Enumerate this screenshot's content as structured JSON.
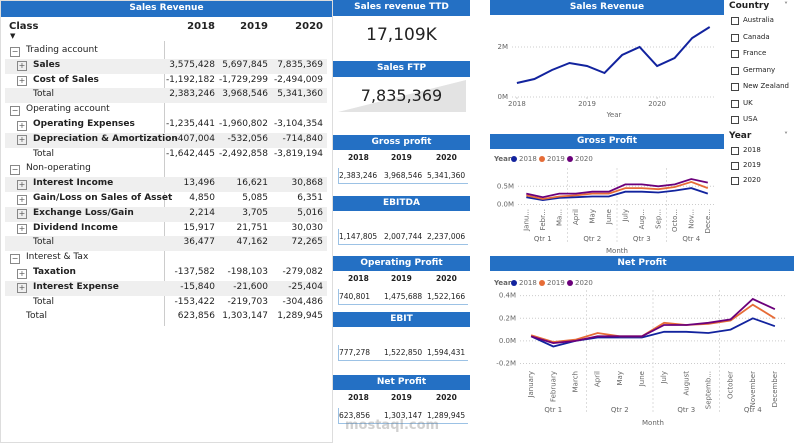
{
  "table": {
    "title": "Sales Revenue",
    "columns": [
      "Class",
      "2018",
      "2019",
      "2020"
    ],
    "groups": [
      {
        "name": "Trading account",
        "rows": [
          {
            "label": "Sales",
            "values": [
              "3,575,428",
              "5,697,845",
              "7,835,369"
            ]
          },
          {
            "label": "Cost of Sales",
            "values": [
              "-1,192,182",
              "-1,729,299",
              "-2,494,009"
            ]
          }
        ],
        "total": {
          "label": "Total",
          "values": [
            "2,383,246",
            "3,968,546",
            "5,341,360"
          ]
        }
      },
      {
        "name": "Operating account",
        "rows": [
          {
            "label": "Operating Expenses",
            "values": [
              "-1,235,441",
              "-1,960,802",
              "-3,104,354"
            ]
          },
          {
            "label": "Depreciation & Amortization",
            "values": [
              "-407,004",
              "-532,056",
              "-714,840"
            ]
          }
        ],
        "total": {
          "label": "Total",
          "values": [
            "-1,642,445",
            "-2,492,858",
            "-3,819,194"
          ]
        }
      },
      {
        "name": "Non-operating",
        "rows": [
          {
            "label": "Interest Income",
            "values": [
              "13,496",
              "16,621",
              "30,868"
            ]
          },
          {
            "label": "Gain/Loss on Sales of Asset",
            "values": [
              "4,850",
              "5,085",
              "6,351"
            ]
          },
          {
            "label": "Exchange Loss/Gain",
            "values": [
              "2,214",
              "3,705",
              "5,016"
            ]
          },
          {
            "label": "Dividend Income",
            "values": [
              "15,917",
              "21,751",
              "30,030"
            ]
          }
        ],
        "total": {
          "label": "Total",
          "values": [
            "36,477",
            "47,162",
            "72,265"
          ]
        }
      },
      {
        "name": "Interest & Tax",
        "rows": [
          {
            "label": "Taxation",
            "values": [
              "-137,582",
              "-198,103",
              "-279,082"
            ]
          },
          {
            "label": "Interest Expense",
            "values": [
              "-15,840",
              "-21,600",
              "-25,404"
            ]
          }
        ],
        "total": {
          "label": "Total",
          "values": [
            "-153,422",
            "-219,703",
            "-304,486"
          ]
        }
      }
    ],
    "grand_total": {
      "label": "Total",
      "values": [
        "623,856",
        "1,303,147",
        "1,289,945"
      ]
    }
  },
  "cards": [
    {
      "title": "Sales revenue TTD",
      "value": "17,109K"
    },
    {
      "title": "Sales FTP",
      "value": "7,835,369"
    }
  ],
  "kpis": [
    {
      "title": "Gross profit",
      "years": [
        "2018",
        "2019",
        "2020"
      ],
      "values": [
        "2,383,246",
        "3,968,546",
        "5,341,360"
      ]
    },
    {
      "title": "EBITDA",
      "values": [
        "1,147,805",
        "2,007,744",
        "2,237,006"
      ]
    },
    {
      "title": "Operating Profit",
      "years": [
        "2018",
        "2019",
        "2020"
      ],
      "values": [
        "740,801",
        "1,475,688",
        "1,522,166"
      ]
    },
    {
      "title": "EBIT",
      "values": [
        "777,278",
        "1,522,850",
        "1,594,431"
      ]
    },
    {
      "title": "Net Profit",
      "years": [
        "2018",
        "2019",
        "2020"
      ],
      "values": [
        "623,856",
        "1,303,147",
        "1,289,945"
      ]
    }
  ],
  "slicers": [
    {
      "title": "Country",
      "items": [
        "Australia",
        "Canada",
        "France",
        "Germany",
        "New Zealand",
        "UK",
        "USA"
      ]
    },
    {
      "title": "Year",
      "items": [
        "2018",
        "2019",
        "2020"
      ]
    }
  ],
  "watermark": "mostaql.com",
  "chart_data": [
    {
      "type": "line",
      "title": "Sales Revenue",
      "x_label": "Year",
      "x": [
        2018,
        2018.25,
        2018.5,
        2018.75,
        2019,
        2019.25,
        2019.5,
        2019.75,
        2020,
        2020.25,
        2020.5,
        2020.75
      ],
      "values": [
        560000,
        720000,
        1080000,
        1360000,
        1240000,
        960000,
        1680000,
        2000000,
        1240000,
        1560000,
        2360000,
        2800000
      ],
      "color": "#12239e",
      "xlim": [
        2017.93,
        2020.84
      ],
      "xticks": [
        2018,
        2019,
        2020
      ],
      "ylim": [
        0,
        2920000
      ],
      "yticks": [
        {
          "value": 0,
          "label": "0M"
        },
        {
          "value": 2000000,
          "label": "2M"
        }
      ],
      "grid": true
    },
    {
      "type": "line",
      "title": "Gross Profit",
      "legend_title": "Year",
      "x_label": "Month",
      "categories": [
        "Janu...",
        "Febr...",
        "Ma...",
        "April",
        "May",
        "June",
        "July",
        "Aug...",
        "Sep...",
        "Octo...",
        "Nov...",
        "Dece..."
      ],
      "groups": [
        "Qtr 1",
        "Qtr 2",
        "Qtr 3",
        "Qtr 4"
      ],
      "series": [
        {
          "name": "2018",
          "color": "#12239e",
          "values": [
            200000,
            120000,
            180000,
            200000,
            220000,
            220000,
            350000,
            350000,
            330000,
            380000,
            450000,
            300000
          ]
        },
        {
          "name": "2019",
          "color": "#e66c37",
          "values": [
            250000,
            150000,
            220000,
            250000,
            300000,
            300000,
            450000,
            450000,
            420000,
            480000,
            620000,
            450000
          ]
        },
        {
          "name": "2020",
          "color": "#6b007b",
          "values": [
            300000,
            200000,
            300000,
            300000,
            350000,
            350000,
            550000,
            550000,
            500000,
            550000,
            700000,
            600000
          ]
        }
      ],
      "ylim": [
        -150000,
        1000000
      ],
      "yticks": [
        {
          "value": 0,
          "label": "0.0M"
        },
        {
          "value": 500000,
          "label": "0.5M"
        }
      ],
      "grid": true
    },
    {
      "type": "line",
      "title": "Net Profit",
      "legend_title": "Year",
      "x_label": "Month",
      "categories": [
        "January",
        "February",
        "March",
        "April",
        "May",
        "June",
        "July",
        "August",
        "Septemb...",
        "October",
        "November",
        "December"
      ],
      "groups": [
        "Qtr 1",
        "Qtr 2",
        "Qtr 3",
        "Qtr 4"
      ],
      "series": [
        {
          "name": "2018",
          "color": "#12239e",
          "values": [
            40000,
            -50000,
            0,
            30000,
            30000,
            30000,
            80000,
            80000,
            70000,
            100000,
            200000,
            130000
          ]
        },
        {
          "name": "2019",
          "color": "#e66c37",
          "values": [
            50000,
            -10000,
            10000,
            70000,
            40000,
            40000,
            160000,
            140000,
            150000,
            180000,
            320000,
            200000
          ]
        },
        {
          "name": "2020",
          "color": "#6b007b",
          "values": [
            40000,
            -20000,
            0,
            40000,
            40000,
            40000,
            140000,
            140000,
            160000,
            190000,
            370000,
            280000
          ]
        }
      ],
      "ylim": [
        -240000,
        450000
      ],
      "yticks": [
        {
          "value": -200000,
          "label": "-0.2M"
        },
        {
          "value": 0,
          "label": "0.0M"
        },
        {
          "value": 200000,
          "label": "0.2M"
        },
        {
          "value": 400000,
          "label": "0.4M"
        }
      ],
      "grid": true
    }
  ]
}
